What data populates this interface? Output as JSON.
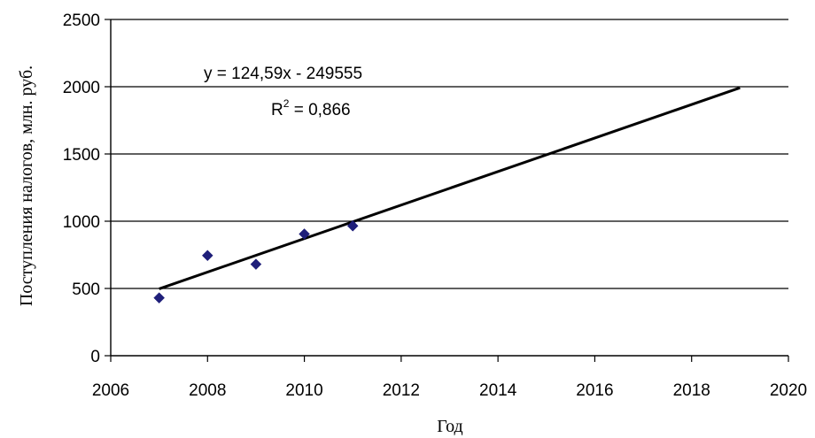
{
  "chart_data": {
    "type": "scatter",
    "title": "",
    "xlabel": "Год",
    "ylabel": "Поступления налогов, млн. руб.",
    "xlim": [
      2006,
      2020
    ],
    "ylim": [
      0,
      2500
    ],
    "x_ticks": [
      2006,
      2008,
      2010,
      2012,
      2014,
      2016,
      2018,
      2020
    ],
    "y_ticks": [
      0,
      500,
      1000,
      1500,
      2000,
      2500
    ],
    "grid": "horizontal",
    "legend": "none",
    "marker_color": "#1f1f7a",
    "points": [
      {
        "x": 2007,
        "y": 430
      },
      {
        "x": 2008,
        "y": 745
      },
      {
        "x": 2009,
        "y": 680
      },
      {
        "x": 2010,
        "y": 905
      },
      {
        "x": 2011,
        "y": 965
      }
    ],
    "trendline": {
      "type": "linear",
      "slope": 124.59,
      "intercept": -249555,
      "x_start": 2007,
      "x_end": 2019,
      "equation": "y = 124,59x - 249555",
      "r2_prefix": "R",
      "r2_sup": "2",
      "r2_value": " = 0,866"
    }
  }
}
